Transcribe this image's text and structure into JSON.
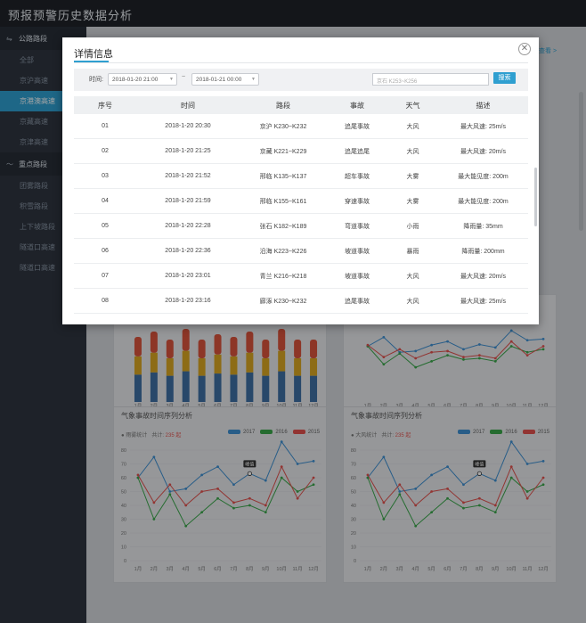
{
  "app": {
    "title": "预报预警历史数据分析"
  },
  "sidebar": {
    "groups": [
      {
        "label": "公路路段",
        "icon": "route-icon",
        "items": [
          {
            "label": "全部"
          },
          {
            "label": "京沪高速"
          },
          {
            "label": "京港澳高速",
            "active": true
          },
          {
            "label": "京藏高速"
          },
          {
            "label": "京津高速"
          }
        ]
      },
      {
        "label": "重点路段",
        "icon": "trend-icon",
        "items": [
          {
            "label": "团雾路段"
          },
          {
            "label": "积雪路段"
          },
          {
            "label": "上下坡路段"
          },
          {
            "label": "隧道口高速"
          },
          {
            "label": "隧道口高速"
          }
        ]
      }
    ]
  },
  "background": {
    "peek_link": "查看 >",
    "months": [
      "1月",
      "2月",
      "3月",
      "4月",
      "5月",
      "6月",
      "7月",
      "8月",
      "9月",
      "10月",
      "11月",
      "12月"
    ],
    "yticks": [
      0,
      10,
      20,
      30,
      40,
      50,
      60,
      70,
      80
    ],
    "legend": [
      {
        "label": "2017",
        "color": "#3e8fd1"
      },
      {
        "label": "2016",
        "color": "#3aa64a"
      },
      {
        "label": "2015",
        "color": "#e0514d"
      }
    ],
    "panels": [
      {
        "title": "气象事故时间序列分析",
        "stat_label": "雨雾统计",
        "stat_prefix": "共计:",
        "stat_value": "235 起",
        "tooltip": "峰值"
      },
      {
        "title": "气象事故时间序列分析",
        "stat_label": "大风统计",
        "stat_prefix": "共计:",
        "stat_value": "235 起",
        "tooltip": "峰值"
      }
    ],
    "bars_top": [
      36,
      28,
      30,
      29,
      30,
      32,
      31,
      33,
      30,
      34,
      30,
      35
    ]
  },
  "modal": {
    "title": "详情信息",
    "filter": {
      "time_label": "时间:",
      "start": "2018-01-20 21:00",
      "separator": "~",
      "end": "2018-01-21 00:00",
      "search_placeholder": "京石 K253~K256",
      "search_button": "搜索"
    },
    "columns": [
      "序号",
      "时间",
      "路段",
      "事故",
      "天气",
      "描述"
    ],
    "rows": [
      [
        "01",
        "2018-1-20  20:30",
        "京沪 K230~K232",
        "追尾事故",
        "大风",
        "最大风速: 25m/s"
      ],
      [
        "02",
        "2018-1-20  21:25",
        "京藏 K221~K229",
        "追尾追尾",
        "大风",
        "最大风速: 20m/s"
      ],
      [
        "03",
        "2018-1-20  21:52",
        "邢临 K135~K137",
        "超车事故",
        "大雾",
        "最大能见度: 200m"
      ],
      [
        "04",
        "2018-1-20  21:59",
        "邢临 K155~K161",
        "穿速事故",
        "大雾",
        "最大能见度: 200m"
      ],
      [
        "05",
        "2018-1-20  22:28",
        "张石 K182~K189",
        "弯道事故",
        "小雨",
        "降雨量: 35mm"
      ],
      [
        "06",
        "2018-1-20  22:36",
        "沿海 K223~K226",
        "坡道事故",
        "暴雨",
        "降雨量: 200mm"
      ],
      [
        "07",
        "2018-1-20  23:01",
        "青兰 K216~K218",
        "坡道事故",
        "大风",
        "最大风速: 20m/s"
      ],
      [
        "08",
        "2018-1-20  23:16",
        "廊涿 K230~K232",
        "追尾事故",
        "大风",
        "最大风速: 25m/s"
      ]
    ]
  },
  "chart_data": [
    {
      "type": "line",
      "title": "气象事故时间序列分析",
      "categories": [
        "1月",
        "2月",
        "3月",
        "4月",
        "5月",
        "6月",
        "7月",
        "8月",
        "9月",
        "10月",
        "11月",
        "12月"
      ],
      "ylim": [
        0,
        80
      ],
      "series": [
        {
          "name": "2017",
          "values": [
            60,
            75,
            50,
            52,
            62,
            68,
            55,
            63,
            58,
            86,
            70,
            72
          ]
        },
        {
          "name": "2016",
          "values": [
            60,
            30,
            48,
            25,
            35,
            45,
            38,
            40,
            35,
            60,
            50,
            55
          ]
        },
        {
          "name": "2015",
          "values": [
            62,
            42,
            55,
            40,
            50,
            52,
            42,
            45,
            40,
            68,
            45,
            60
          ]
        }
      ],
      "annotations": [
        "峰值"
      ]
    },
    {
      "type": "line",
      "title": "气象事故时间序列分析",
      "categories": [
        "1月",
        "2月",
        "3月",
        "4月",
        "5月",
        "6月",
        "7月",
        "8月",
        "9月",
        "10月",
        "11月",
        "12月"
      ],
      "ylim": [
        0,
        80
      ],
      "series": [
        {
          "name": "2017",
          "values": [
            60,
            75,
            50,
            52,
            62,
            68,
            55,
            63,
            58,
            86,
            70,
            72
          ]
        },
        {
          "name": "2016",
          "values": [
            60,
            30,
            48,
            25,
            35,
            45,
            38,
            40,
            35,
            60,
            50,
            55
          ]
        },
        {
          "name": "2015",
          "values": [
            62,
            42,
            55,
            40,
            50,
            52,
            42,
            45,
            40,
            68,
            45,
            60
          ]
        }
      ],
      "annotations": [
        "峰值"
      ]
    }
  ]
}
